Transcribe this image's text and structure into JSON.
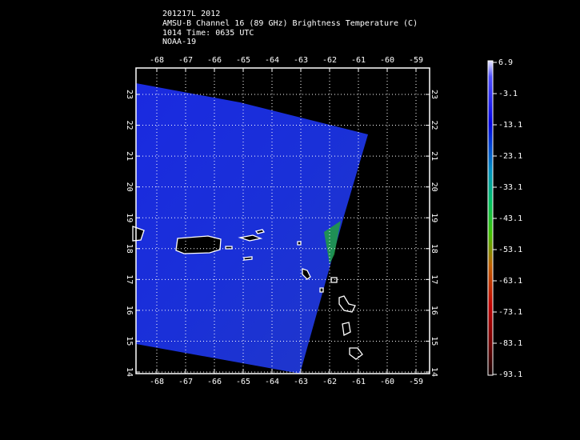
{
  "header": {
    "lines": [
      "201217L 2012",
      "AMSU-B Channel 16 (89 GHz) Brightness Temperature (C)",
      "1014 Time: 0635 UTC",
      "NOAA-19"
    ]
  },
  "map": {
    "lon_ticks": [
      -68,
      -67,
      -66,
      -65,
      -64,
      -63,
      -62,
      -61,
      -60,
      -59
    ],
    "lat_ticks": [
      14,
      15,
      16,
      17,
      18,
      19,
      20,
      21,
      22,
      23
    ]
  },
  "colorbar": {
    "ticks": [
      6.9,
      -3.1,
      -13.1,
      -23.1,
      -33.1,
      -43.1,
      -53.1,
      -63.1,
      -73.1,
      -83.1,
      -93.1
    ]
  }
}
